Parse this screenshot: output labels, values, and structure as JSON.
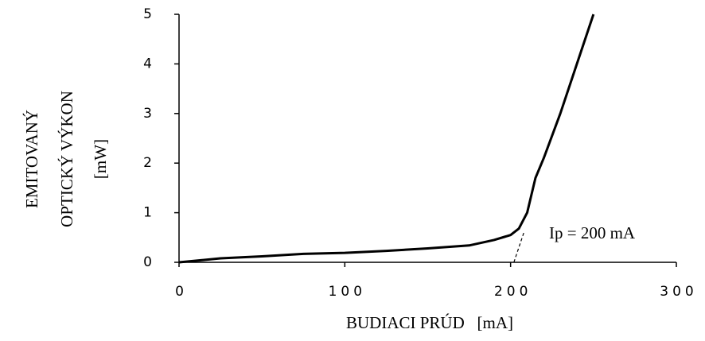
{
  "chart_data": {
    "type": "line",
    "ylabel": [
      "EMITOVANÝ",
      "OPTICKÝ VÝKON",
      "[mW]"
    ],
    "xlabel": "BUDIACI PRÚD   [mA]",
    "annotation": "Ip = 200 mA",
    "x": [
      0,
      25,
      50,
      75,
      100,
      125,
      150,
      175,
      190,
      200,
      205,
      210,
      215,
      220,
      230,
      240,
      250
    ],
    "series": [
      {
        "color": "#000000",
        "values": [
          0,
          0.08,
          0.12,
          0.17,
          0.19,
          0.23,
          0.28,
          0.34,
          0.45,
          0.55,
          0.68,
          1.0,
          1.7,
          2.1,
          3.0,
          4.0,
          5.0
        ]
      }
    ],
    "tangent": {
      "x": [
        202,
        208
      ],
      "y": [
        0,
        0.6
      ]
    },
    "xlim": [
      0,
      300
    ],
    "xticks": [
      0,
      100,
      200,
      300
    ],
    "ylim": [
      0,
      5
    ],
    "yticks": [
      0,
      1,
      2,
      3,
      4,
      5
    ]
  }
}
